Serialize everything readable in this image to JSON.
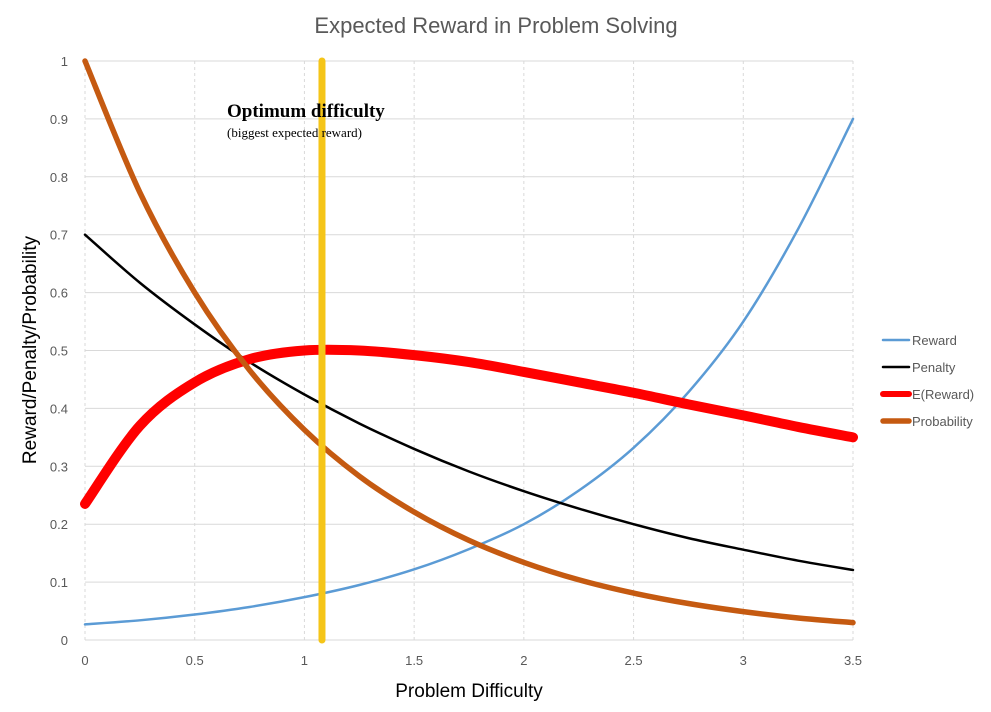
{
  "chart_data": {
    "type": "line",
    "title": "Expected Reward in Problem Solving",
    "xlabel": "Problem Difficulty",
    "ylabel": "Reward/Penalty/Probability",
    "xlim": [
      0,
      3.5
    ],
    "ylim": [
      0,
      1
    ],
    "x_ticks": [
      "0",
      "0.5",
      "1",
      "1.5",
      "2",
      "2.5",
      "3",
      "3.5"
    ],
    "y_ticks": [
      "0",
      "0.1",
      "0.2",
      "0.3",
      "0.4",
      "0.5",
      "0.6",
      "0.7",
      "0.8",
      "0.9",
      "1"
    ],
    "grid": true,
    "legend_position": "right",
    "x": [
      0,
      0.25,
      0.5,
      0.75,
      1,
      1.25,
      1.5,
      1.75,
      2,
      2.25,
      2.5,
      2.75,
      3,
      3.25,
      3.5
    ],
    "series": [
      {
        "name": "Reward",
        "color": "#5b9bd5",
        "width": "thin",
        "values": [
          0.027,
          0.034,
          0.044,
          0.057,
          0.074,
          0.095,
          0.122,
          0.157,
          0.2,
          0.258,
          0.332,
          0.428,
          0.55,
          0.71,
          0.9
        ]
      },
      {
        "name": "Penalty",
        "color": "#000000",
        "width": "thin",
        "values": [
          0.7,
          0.617,
          0.545,
          0.48,
          0.424,
          0.374,
          0.33,
          0.291,
          0.257,
          0.227,
          0.2,
          0.176,
          0.156,
          0.137,
          0.121
        ]
      },
      {
        "name": "E(Reward)",
        "color": "#ff0000",
        "width": "thick",
        "values": [
          0.235,
          0.37,
          0.445,
          0.485,
          0.5,
          0.5,
          0.492,
          0.48,
          0.463,
          0.445,
          0.427,
          0.407,
          0.388,
          0.368,
          0.35
        ]
      },
      {
        "name": "Probability",
        "color": "#c55a11",
        "width": "medium",
        "values": [
          1.0,
          0.773,
          0.6,
          0.466,
          0.363,
          0.283,
          0.221,
          0.172,
          0.134,
          0.104,
          0.081,
          0.063,
          0.049,
          0.038,
          0.03
        ]
      }
    ],
    "marker_line": {
      "x": 1.08,
      "color": "#f5c518"
    },
    "annotation": {
      "title": "Optimum difficulty",
      "subtitle": "(biggest expected reward)"
    }
  }
}
